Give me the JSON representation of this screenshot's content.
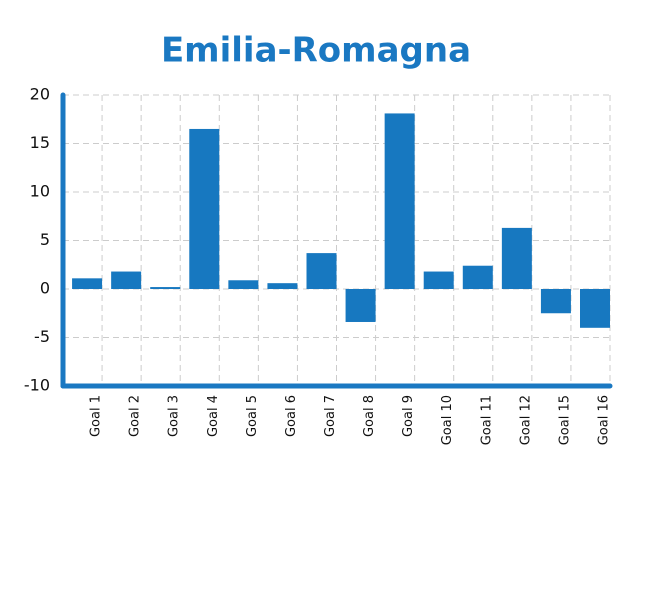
{
  "chart_data": {
    "type": "bar",
    "title": "Emilia-Romagna",
    "categories": [
      "Goal 1",
      "Goal 2",
      "Goal 3",
      "Goal 4",
      "Goal 5",
      "Goal 6",
      "Goal 7",
      "Goal 8",
      "Goal 9",
      "Goal 10",
      "Goal 11",
      "Goal 12",
      "Goal 15",
      "Goal 16"
    ],
    "values": [
      1.1,
      1.8,
      0.2,
      16.5,
      0.9,
      0.6,
      3.7,
      -3.4,
      18.1,
      1.8,
      2.4,
      6.3,
      -2.5,
      -4.0
    ],
    "color": "#1778c0",
    "ylim": [
      -10,
      20
    ],
    "yticks": [
      -10,
      -5,
      0,
      5,
      10,
      15,
      20
    ],
    "grid": true
  }
}
